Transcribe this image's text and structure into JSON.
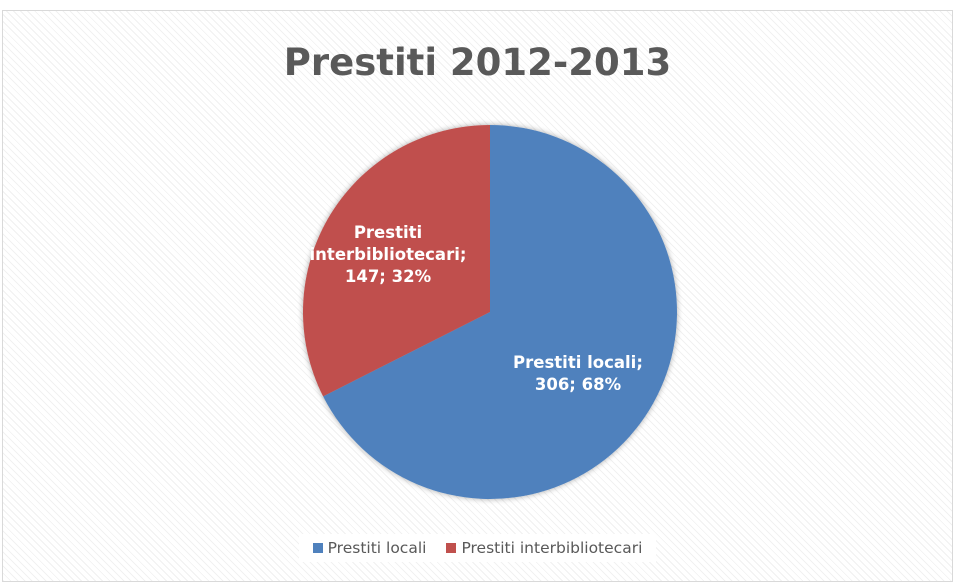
{
  "chart_data": {
    "type": "pie",
    "title": "Prestiti 2012-2013",
    "slices": [
      {
        "name": "Prestiti locali",
        "value": 306,
        "percent": 68,
        "color": "#4f81bd",
        "label_lines": [
          "Prestiti locali;",
          "306; 68%"
        ]
      },
      {
        "name": "Prestiti interbibliotecari",
        "value": 147,
        "percent": 32,
        "color": "#c0504d",
        "label_lines": [
          "Prestiti",
          "interbibliotecari;",
          "147; 32%"
        ]
      }
    ],
    "legend": {
      "position": "bottom",
      "entries": [
        "Prestiti locali",
        "Prestiti interbibliotecari"
      ]
    }
  }
}
